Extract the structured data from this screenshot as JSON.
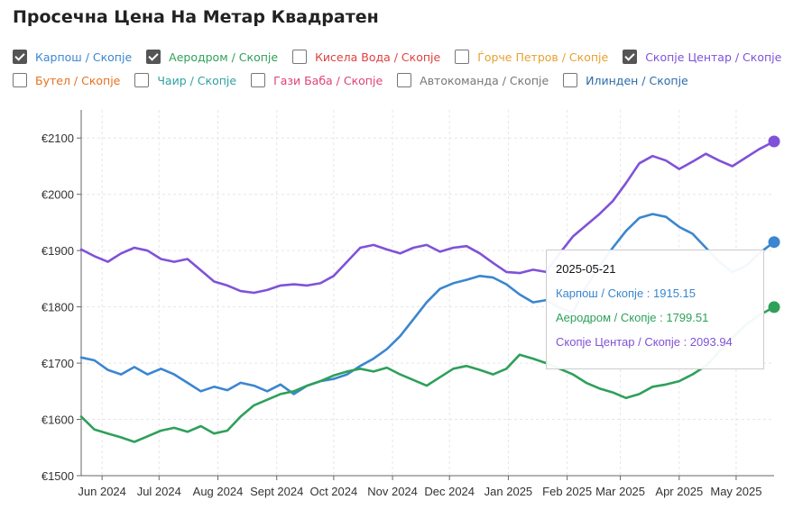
{
  "title": "Просечна Цена На Метар Квадратен",
  "legend": {
    "rows": [
      [
        {
          "label": "Карпош / Скопје",
          "color": "#3a86d0",
          "checked": true
        },
        {
          "label": "Аеродром / Скопје",
          "color": "#2ea05a",
          "checked": true
        },
        {
          "label": "Кисела Вода / Скопје",
          "color": "#e04040",
          "checked": false
        },
        {
          "label": "Ѓорче Петров / Скопје",
          "color": "#e8a030",
          "checked": false
        },
        {
          "label": "Скопје Центар / Скопје",
          "color": "#8052d8",
          "checked": true
        }
      ],
      [
        {
          "label": "Бутел / Скопје",
          "color": "#e67020",
          "checked": false
        },
        {
          "label": "Чаир / Скопје",
          "color": "#30a0a0",
          "checked": false
        },
        {
          "label": "Гази Баба / Скопје",
          "color": "#e0407a",
          "checked": false
        },
        {
          "label": "Автокоманда / Скопје",
          "color": "#777777",
          "checked": false
        },
        {
          "label": "Илинден / Скопје",
          "color": "#2c6aa8",
          "checked": false
        }
      ]
    ]
  },
  "tooltip": {
    "date": "2025-05-21",
    "rows": [
      {
        "text": "Карпош / Скопје : 1915.15",
        "color": "#3a86d0"
      },
      {
        "text": "Аеродром / Скопје : 1799.51",
        "color": "#2ea05a"
      },
      {
        "text": "Скопје Центар / Скопје : 2093.94",
        "color": "#8052d8"
      }
    ]
  },
  "chart_data": {
    "type": "line",
    "title": "Просечна Цена На Метар Квадратен",
    "xlabel": "",
    "ylabel": "",
    "ylim": [
      1500,
      2150
    ],
    "x_domain": [
      "2024-05-21",
      "2025-05-21"
    ],
    "grid": true,
    "legend_position": "top",
    "y_ticks": [
      {
        "value": 1500,
        "label": "€1500"
      },
      {
        "value": 1600,
        "label": "€1600"
      },
      {
        "value": 1700,
        "label": "€1700"
      },
      {
        "value": 1800,
        "label": "€1800"
      },
      {
        "value": 1900,
        "label": "€1900"
      },
      {
        "value": 2000,
        "label": "€2000"
      },
      {
        "value": 2100,
        "label": "€2100"
      }
    ],
    "x_ticks": [
      {
        "date": "2024-06-01",
        "label": "Jun 2024"
      },
      {
        "date": "2024-07-01",
        "label": "Jul 2024"
      },
      {
        "date": "2024-08-01",
        "label": "Aug 2024"
      },
      {
        "date": "2024-09-01",
        "label": "Sept 2024"
      },
      {
        "date": "2024-10-01",
        "label": "Oct 2024"
      },
      {
        "date": "2024-11-01",
        "label": "Nov 2024"
      },
      {
        "date": "2024-12-01",
        "label": "Dec 2024"
      },
      {
        "date": "2025-01-01",
        "label": "Jan 2025"
      },
      {
        "date": "2025-02-01",
        "label": "Feb 2025"
      },
      {
        "date": "2025-03-01",
        "label": "Mar 2025"
      },
      {
        "date": "2025-04-01",
        "label": "Apr 2025"
      },
      {
        "date": "2025-05-01",
        "label": "May 2025"
      }
    ],
    "series": [
      {
        "name": "Карпош / Скопје",
        "color": "#3a86d0",
        "points": [
          [
            "2024-05-21",
            1710
          ],
          [
            "2024-05-28",
            1705
          ],
          [
            "2024-06-04",
            1688
          ],
          [
            "2024-06-11",
            1680
          ],
          [
            "2024-06-18",
            1693
          ],
          [
            "2024-06-25",
            1680
          ],
          [
            "2024-07-02",
            1690
          ],
          [
            "2024-07-09",
            1680
          ],
          [
            "2024-07-16",
            1665
          ],
          [
            "2024-07-23",
            1650
          ],
          [
            "2024-07-30",
            1658
          ],
          [
            "2024-08-06",
            1652
          ],
          [
            "2024-08-13",
            1665
          ],
          [
            "2024-08-20",
            1660
          ],
          [
            "2024-08-27",
            1650
          ],
          [
            "2024-09-03",
            1662
          ],
          [
            "2024-09-10",
            1645
          ],
          [
            "2024-09-17",
            1660
          ],
          [
            "2024-09-24",
            1668
          ],
          [
            "2024-10-01",
            1672
          ],
          [
            "2024-10-08",
            1680
          ],
          [
            "2024-10-15",
            1695
          ],
          [
            "2024-10-22",
            1708
          ],
          [
            "2024-10-29",
            1725
          ],
          [
            "2024-11-05",
            1748
          ],
          [
            "2024-11-12",
            1778
          ],
          [
            "2024-11-19",
            1808
          ],
          [
            "2024-11-26",
            1832
          ],
          [
            "2024-12-03",
            1842
          ],
          [
            "2024-12-10",
            1848
          ],
          [
            "2024-12-17",
            1855
          ],
          [
            "2024-12-24",
            1852
          ],
          [
            "2024-12-31",
            1840
          ],
          [
            "2025-01-07",
            1822
          ],
          [
            "2025-01-14",
            1808
          ],
          [
            "2025-01-21",
            1812
          ],
          [
            "2025-01-28",
            1798
          ],
          [
            "2025-02-04",
            1790
          ],
          [
            "2025-02-11",
            1836
          ],
          [
            "2025-02-18",
            1872
          ],
          [
            "2025-02-25",
            1905
          ],
          [
            "2025-03-04",
            1935
          ],
          [
            "2025-03-11",
            1958
          ],
          [
            "2025-03-18",
            1965
          ],
          [
            "2025-03-25",
            1960
          ],
          [
            "2025-04-01",
            1942
          ],
          [
            "2025-04-08",
            1930
          ],
          [
            "2025-04-15",
            1905
          ],
          [
            "2025-04-22",
            1880
          ],
          [
            "2025-04-29",
            1862
          ],
          [
            "2025-05-06",
            1872
          ],
          [
            "2025-05-13",
            1895
          ],
          [
            "2025-05-21",
            1915.15
          ]
        ]
      },
      {
        "name": "Аеродром / Скопје",
        "color": "#2ea05a",
        "points": [
          [
            "2024-05-21",
            1605
          ],
          [
            "2024-05-28",
            1582
          ],
          [
            "2024-06-04",
            1575
          ],
          [
            "2024-06-11",
            1568
          ],
          [
            "2024-06-18",
            1560
          ],
          [
            "2024-06-25",
            1570
          ],
          [
            "2024-07-02",
            1580
          ],
          [
            "2024-07-09",
            1585
          ],
          [
            "2024-07-16",
            1578
          ],
          [
            "2024-07-23",
            1588
          ],
          [
            "2024-07-30",
            1575
          ],
          [
            "2024-08-06",
            1580
          ],
          [
            "2024-08-13",
            1605
          ],
          [
            "2024-08-20",
            1625
          ],
          [
            "2024-08-27",
            1635
          ],
          [
            "2024-09-03",
            1645
          ],
          [
            "2024-09-10",
            1650
          ],
          [
            "2024-09-17",
            1660
          ],
          [
            "2024-09-24",
            1668
          ],
          [
            "2024-10-01",
            1678
          ],
          [
            "2024-10-08",
            1685
          ],
          [
            "2024-10-15",
            1690
          ],
          [
            "2024-10-22",
            1685
          ],
          [
            "2024-10-29",
            1692
          ],
          [
            "2024-11-05",
            1680
          ],
          [
            "2024-11-12",
            1670
          ],
          [
            "2024-11-19",
            1660
          ],
          [
            "2024-11-26",
            1675
          ],
          [
            "2024-12-03",
            1690
          ],
          [
            "2024-12-10",
            1695
          ],
          [
            "2024-12-17",
            1688
          ],
          [
            "2024-12-24",
            1680
          ],
          [
            "2024-12-31",
            1690
          ],
          [
            "2025-01-07",
            1715
          ],
          [
            "2025-01-14",
            1708
          ],
          [
            "2025-01-21",
            1700
          ],
          [
            "2025-01-28",
            1690
          ],
          [
            "2025-02-04",
            1680
          ],
          [
            "2025-02-11",
            1665
          ],
          [
            "2025-02-18",
            1655
          ],
          [
            "2025-02-25",
            1648
          ],
          [
            "2025-03-04",
            1638
          ],
          [
            "2025-03-11",
            1645
          ],
          [
            "2025-03-18",
            1658
          ],
          [
            "2025-03-25",
            1662
          ],
          [
            "2025-04-01",
            1668
          ],
          [
            "2025-04-08",
            1680
          ],
          [
            "2025-04-15",
            1695
          ],
          [
            "2025-04-22",
            1720
          ],
          [
            "2025-04-29",
            1745
          ],
          [
            "2025-05-06",
            1768
          ],
          [
            "2025-05-13",
            1785
          ],
          [
            "2025-05-21",
            1799.51
          ]
        ]
      },
      {
        "name": "Скопје Центар / Скопје",
        "color": "#8052d8",
        "points": [
          [
            "2024-05-21",
            1902
          ],
          [
            "2024-05-28",
            1890
          ],
          [
            "2024-06-04",
            1880
          ],
          [
            "2024-06-11",
            1895
          ],
          [
            "2024-06-18",
            1905
          ],
          [
            "2024-06-25",
            1900
          ],
          [
            "2024-07-02",
            1885
          ],
          [
            "2024-07-09",
            1880
          ],
          [
            "2024-07-16",
            1885
          ],
          [
            "2024-07-23",
            1865
          ],
          [
            "2024-07-30",
            1845
          ],
          [
            "2024-08-06",
            1838
          ],
          [
            "2024-08-13",
            1828
          ],
          [
            "2024-08-20",
            1825
          ],
          [
            "2024-08-27",
            1830
          ],
          [
            "2024-09-03",
            1838
          ],
          [
            "2024-09-10",
            1840
          ],
          [
            "2024-09-17",
            1838
          ],
          [
            "2024-09-24",
            1842
          ],
          [
            "2024-10-01",
            1855
          ],
          [
            "2024-10-08",
            1880
          ],
          [
            "2024-10-15",
            1905
          ],
          [
            "2024-10-22",
            1910
          ],
          [
            "2024-10-29",
            1902
          ],
          [
            "2024-11-05",
            1895
          ],
          [
            "2024-11-12",
            1905
          ],
          [
            "2024-11-19",
            1910
          ],
          [
            "2024-11-26",
            1898
          ],
          [
            "2024-12-03",
            1905
          ],
          [
            "2024-12-10",
            1908
          ],
          [
            "2024-12-17",
            1895
          ],
          [
            "2024-12-24",
            1878
          ],
          [
            "2024-12-31",
            1862
          ],
          [
            "2025-01-07",
            1860
          ],
          [
            "2025-01-14",
            1866
          ],
          [
            "2025-01-21",
            1862
          ],
          [
            "2025-01-28",
            1895
          ],
          [
            "2025-02-04",
            1925
          ],
          [
            "2025-02-11",
            1945
          ],
          [
            "2025-02-18",
            1965
          ],
          [
            "2025-02-25",
            1988
          ],
          [
            "2025-03-04",
            2020
          ],
          [
            "2025-03-11",
            2055
          ],
          [
            "2025-03-18",
            2068
          ],
          [
            "2025-03-25",
            2060
          ],
          [
            "2025-04-01",
            2045
          ],
          [
            "2025-04-08",
            2058
          ],
          [
            "2025-04-15",
            2072
          ],
          [
            "2025-04-22",
            2060
          ],
          [
            "2025-04-29",
            2050
          ],
          [
            "2025-05-06",
            2065
          ],
          [
            "2025-05-13",
            2080
          ],
          [
            "2025-05-21",
            2093.94
          ]
        ]
      }
    ]
  }
}
